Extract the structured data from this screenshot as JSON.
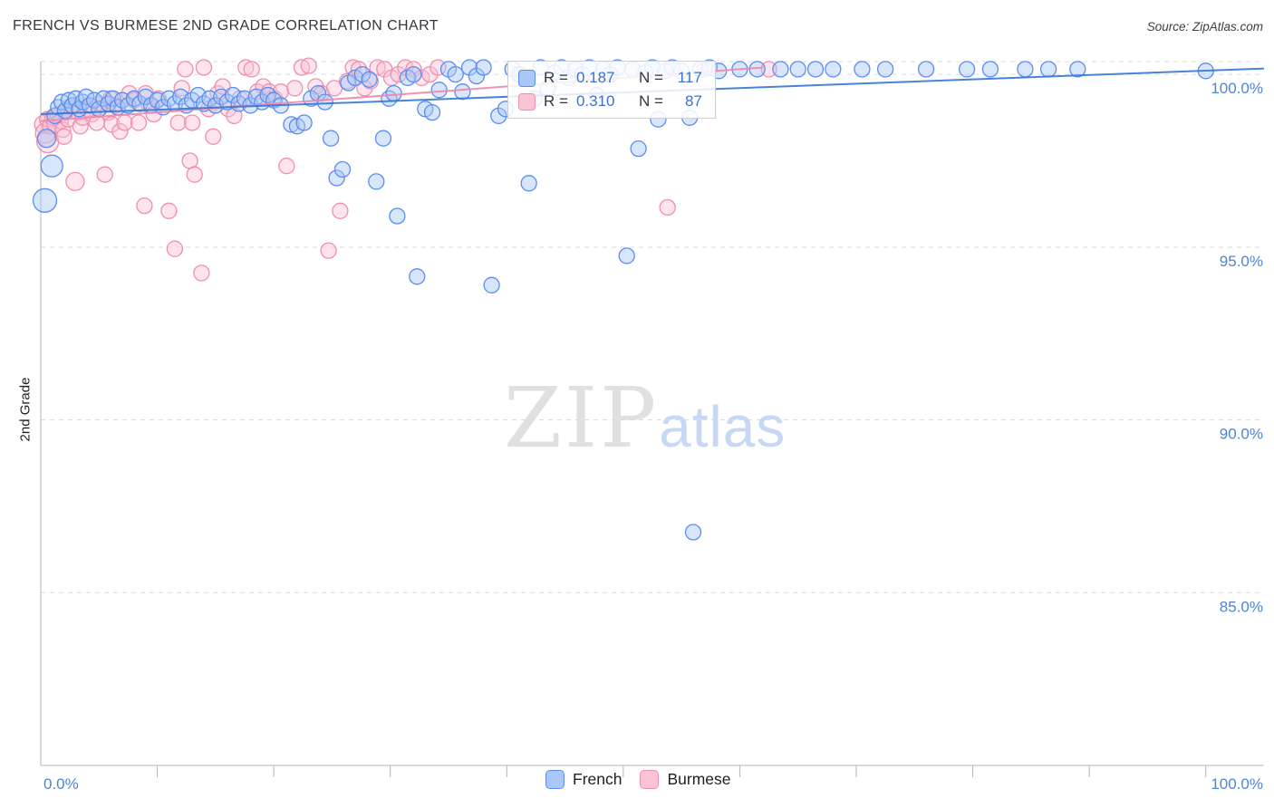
{
  "header": {
    "title": "FRENCH VS BURMESE 2ND GRADE CORRELATION CHART",
    "source": "Source: ZipAtlas.com"
  },
  "watermark": {
    "zip": "ZIP",
    "atlas": "atlas"
  },
  "stats_box": {
    "rows": [
      {
        "series": "French",
        "r_label": "R =",
        "r_value": "0.187",
        "n_label": "N =",
        "n_value": "117"
      },
      {
        "series": "Burmese",
        "r_label": "R =",
        "r_value": "0.310",
        "n_label": "N =",
        "n_value": "87"
      }
    ]
  },
  "legend": {
    "items": [
      {
        "label": "French"
      },
      {
        "label": "Burmese"
      }
    ]
  },
  "colors": {
    "french_stroke": "#5b8def",
    "french_fill": "#a9c8f7",
    "french_trend": "#3575d3",
    "burmese_stroke": "#ef8fae",
    "burmese_fill": "#fac3d6",
    "burmese_trend": "#f285a8",
    "axis_label": "#4a86d8",
    "grid": "#dcdcdc",
    "axis": "#b5b5b5"
  },
  "chart_data": {
    "type": "scatter",
    "title": "FRENCH VS BURMESE 2ND GRADE CORRELATION CHART",
    "ylabel": "2nd Grade",
    "xlabel": "",
    "xlim": [
      0,
      105
    ],
    "ylim": [
      80.0,
      100.37
    ],
    "grid": "horizontal-dashed",
    "legend_position": "bottom-center",
    "x_tick_labels": {
      "left": "0.0%",
      "right": "100.0%"
    },
    "x_axis_ticks_percent": [
      10,
      20,
      30,
      40,
      50,
      60,
      70,
      80,
      90,
      100
    ],
    "y_gridlines": [
      {
        "value": 100,
        "label": "100.0%"
      },
      {
        "value": 95,
        "label": "95.0%"
      },
      {
        "value": 90,
        "label": "90.0%"
      },
      {
        "value": 85,
        "label": "85.0%"
      }
    ],
    "series": [
      {
        "name": "French",
        "R": 0.187,
        "N": 117,
        "stroke": "#5b8def",
        "fill": "#a9c8f7",
        "trend_color": "#3575d3",
        "trend": {
          "x1": 0,
          "y1": 98.85,
          "x2": 105,
          "y2": 100.17
        },
        "points": [
          [
            0.35,
            96.35,
            13
          ],
          [
            0.95,
            97.35,
            12
          ],
          [
            0.5,
            98.15,
            10
          ],
          [
            1.2,
            98.8
          ],
          [
            1.5,
            99.05
          ],
          [
            1.8,
            99.2
          ],
          [
            2.1,
            98.95
          ],
          [
            2.4,
            99.25
          ],
          [
            2.7,
            99.1
          ],
          [
            3.0,
            99.3
          ],
          [
            3.3,
            99.0
          ],
          [
            3.6,
            99.2
          ],
          [
            3.9,
            99.35
          ],
          [
            4.2,
            99.1
          ],
          [
            4.6,
            99.25
          ],
          [
            5.0,
            99.0
          ],
          [
            5.4,
            99.3
          ],
          [
            5.8,
            99.15
          ],
          [
            6.2,
            99.3
          ],
          [
            6.6,
            99.05
          ],
          [
            7.0,
            99.25
          ],
          [
            7.5,
            99.1
          ],
          [
            8.0,
            99.3
          ],
          [
            8.5,
            99.15
          ],
          [
            9.0,
            99.35
          ],
          [
            9.5,
            99.1
          ],
          [
            10.0,
            99.25
          ],
          [
            10.5,
            99.05
          ],
          [
            11.0,
            99.3
          ],
          [
            11.5,
            99.15
          ],
          [
            12.0,
            99.35
          ],
          [
            12.5,
            99.1
          ],
          [
            13.0,
            99.25
          ],
          [
            13.5,
            99.4
          ],
          [
            14.0,
            99.15
          ],
          [
            14.5,
            99.3
          ],
          [
            15.0,
            99.1
          ],
          [
            15.5,
            99.35
          ],
          [
            16.0,
            99.2
          ],
          [
            16.5,
            99.4
          ],
          [
            17.0,
            99.15
          ],
          [
            17.5,
            99.3
          ],
          [
            18.0,
            99.1
          ],
          [
            18.5,
            99.35
          ],
          [
            19.0,
            99.2
          ],
          [
            19.5,
            99.4
          ],
          [
            20.0,
            99.25
          ],
          [
            20.6,
            99.1
          ],
          [
            21.5,
            98.55
          ],
          [
            22.0,
            98.5
          ],
          [
            22.6,
            98.6
          ],
          [
            23.2,
            99.3
          ],
          [
            23.8,
            99.45
          ],
          [
            24.4,
            99.2
          ],
          [
            24.9,
            98.15
          ],
          [
            25.4,
            97.0
          ],
          [
            25.9,
            97.25
          ],
          [
            26.4,
            99.75
          ],
          [
            27.0,
            99.9
          ],
          [
            27.6,
            100.0
          ],
          [
            28.2,
            99.85
          ],
          [
            28.8,
            96.9
          ],
          [
            29.4,
            98.15
          ],
          [
            29.9,
            99.3
          ],
          [
            30.3,
            99.45
          ],
          [
            30.6,
            95.9
          ],
          [
            31.5,
            99.9
          ],
          [
            32.0,
            100.0
          ],
          [
            32.3,
            94.15
          ],
          [
            33.0,
            99.0
          ],
          [
            33.6,
            98.9
          ],
          [
            34.2,
            99.55
          ],
          [
            35.0,
            100.15
          ],
          [
            35.6,
            100.0
          ],
          [
            36.2,
            99.5
          ],
          [
            36.8,
            100.2
          ],
          [
            37.4,
            99.95
          ],
          [
            38.0,
            100.2
          ],
          [
            38.7,
            93.9
          ],
          [
            39.3,
            98.8
          ],
          [
            39.9,
            99.0
          ],
          [
            40.5,
            100.15
          ],
          [
            41.1,
            100.0
          ],
          [
            41.9,
            96.85
          ],
          [
            42.4,
            99.3
          ],
          [
            42.9,
            100.2
          ],
          [
            43.5,
            99.6
          ],
          [
            44.1,
            100.05
          ],
          [
            44.7,
            100.2
          ],
          [
            45.3,
            99.9
          ],
          [
            45.9,
            100.15
          ],
          [
            46.5,
            100.0
          ],
          [
            47.1,
            100.2
          ],
          [
            47.7,
            99.4
          ],
          [
            48.3,
            100.15
          ],
          [
            48.9,
            100.0
          ],
          [
            49.5,
            100.2
          ],
          [
            50.3,
            94.75
          ],
          [
            50.8,
            100.15
          ],
          [
            51.3,
            97.85
          ],
          [
            51.9,
            100.05
          ],
          [
            52.5,
            100.2
          ],
          [
            53.0,
            98.7
          ],
          [
            53.6,
            100.1
          ],
          [
            54.2,
            100.2
          ],
          [
            55.0,
            100.1
          ],
          [
            55.7,
            98.75
          ],
          [
            56.0,
            86.75
          ],
          [
            56.6,
            100.15
          ],
          [
            57.4,
            100.2
          ],
          [
            58.2,
            100.1
          ],
          [
            60.0,
            100.15
          ],
          [
            61.5,
            100.15
          ],
          [
            63.5,
            100.15
          ],
          [
            65.0,
            100.15
          ],
          [
            66.5,
            100.15
          ],
          [
            68.0,
            100.15
          ],
          [
            70.5,
            100.15
          ],
          [
            72.5,
            100.15
          ],
          [
            76.0,
            100.15
          ],
          [
            79.5,
            100.15
          ],
          [
            81.5,
            100.15
          ],
          [
            84.5,
            100.15
          ],
          [
            86.5,
            100.15
          ],
          [
            89.0,
            100.15
          ],
          [
            100.0,
            100.1
          ]
        ]
      },
      {
        "name": "Burmese",
        "R": 0.31,
        "N": 87,
        "stroke": "#ef8fae",
        "fill": "#fac3d6",
        "trend_color": "#f285a8",
        "trend": {
          "x1": 0,
          "y1": 98.65,
          "x2": 62,
          "y2": 100.2
        },
        "points": [
          [
            0.25,
            98.55,
            10
          ],
          [
            0.4,
            98.3,
            11
          ],
          [
            0.55,
            98.7
          ],
          [
            0.6,
            98.05,
            12
          ],
          [
            0.8,
            98.5
          ],
          [
            1.0,
            98.75
          ],
          [
            1.2,
            98.55
          ],
          [
            1.45,
            98.85
          ],
          [
            1.7,
            98.65
          ],
          [
            1.9,
            98.4
          ],
          [
            2.0,
            98.2
          ],
          [
            2.1,
            98.9
          ],
          [
            2.35,
            98.7
          ],
          [
            2.6,
            99.05
          ],
          [
            2.95,
            96.9,
            10
          ],
          [
            3.2,
            98.9
          ],
          [
            3.4,
            98.5
          ],
          [
            3.6,
            98.75
          ],
          [
            4.0,
            99.0
          ],
          [
            4.4,
            98.85
          ],
          [
            4.8,
            98.6
          ],
          [
            5.0,
            99.15
          ],
          [
            5.5,
            97.1
          ],
          [
            5.8,
            98.9
          ],
          [
            6.0,
            99.3
          ],
          [
            6.1,
            98.55
          ],
          [
            6.4,
            99.1
          ],
          [
            6.8,
            98.35
          ],
          [
            7.2,
            98.6
          ],
          [
            7.6,
            99.45
          ],
          [
            8.0,
            99.25
          ],
          [
            8.4,
            98.6
          ],
          [
            8.9,
            96.2
          ],
          [
            9.0,
            99.45
          ],
          [
            9.3,
            99.1
          ],
          [
            9.7,
            98.85
          ],
          [
            10.1,
            99.3
          ],
          [
            11.0,
            96.05
          ],
          [
            11.5,
            94.95
          ],
          [
            11.8,
            98.6
          ],
          [
            12.1,
            99.6
          ],
          [
            12.4,
            100.15
          ],
          [
            12.8,
            97.5
          ],
          [
            13.0,
            98.6
          ],
          [
            13.2,
            97.1
          ],
          [
            13.8,
            94.25
          ],
          [
            14.0,
            100.2
          ],
          [
            14.4,
            99.0
          ],
          [
            14.8,
            98.2
          ],
          [
            15.0,
            99.1
          ],
          [
            15.2,
            99.45
          ],
          [
            15.6,
            99.65
          ],
          [
            16.1,
            99.0
          ],
          [
            16.6,
            98.8
          ],
          [
            17.1,
            99.3
          ],
          [
            17.6,
            100.2
          ],
          [
            18.1,
            100.15
          ],
          [
            18.6,
            99.5
          ],
          [
            19.1,
            99.65
          ],
          [
            19.6,
            99.5
          ],
          [
            20.1,
            99.3
          ],
          [
            20.6,
            99.5
          ],
          [
            21.1,
            97.35
          ],
          [
            21.8,
            99.6
          ],
          [
            22.4,
            100.2
          ],
          [
            23.0,
            100.25
          ],
          [
            23.6,
            99.65
          ],
          [
            24.1,
            99.45
          ],
          [
            24.7,
            94.9
          ],
          [
            25.2,
            99.6
          ],
          [
            25.7,
            96.05
          ],
          [
            26.3,
            99.8
          ],
          [
            26.8,
            100.2
          ],
          [
            27.3,
            100.15
          ],
          [
            27.8,
            99.6
          ],
          [
            28.3,
            99.8
          ],
          [
            28.9,
            100.2
          ],
          [
            29.5,
            100.15
          ],
          [
            30.1,
            99.9
          ],
          [
            30.7,
            100.0
          ],
          [
            31.3,
            100.2
          ],
          [
            32.0,
            100.15
          ],
          [
            32.7,
            99.9
          ],
          [
            33.4,
            100.0
          ],
          [
            34.1,
            100.2
          ],
          [
            53.8,
            96.15
          ],
          [
            57.0,
            100.15
          ],
          [
            62.5,
            100.15
          ]
        ]
      }
    ]
  }
}
